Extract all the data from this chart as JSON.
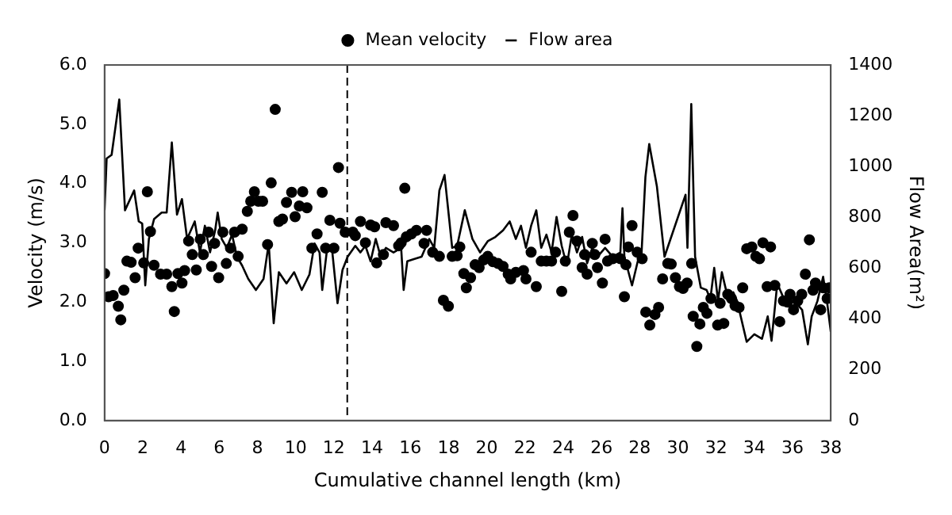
{
  "chart_data": {
    "type": "scatter",
    "xlabel": "Cumulative channel length (km)",
    "ylabel": "Velocity (m/s)",
    "y2label": "Flow Area(m²)",
    "xlim": [
      0,
      38
    ],
    "xticks": [
      0,
      2,
      4,
      6,
      8,
      10,
      12,
      14,
      16,
      18,
      20,
      22,
      24,
      26,
      28,
      30,
      32,
      34,
      36,
      38
    ],
    "ylim": [
      0,
      6
    ],
    "yticks": [
      {
        "value": 0,
        "label": "0.0"
      },
      {
        "value": 1,
        "label": "1.0"
      },
      {
        "value": 2,
        "label": "2.0"
      },
      {
        "value": 3,
        "label": "3.0"
      },
      {
        "value": 4,
        "label": "4.0"
      },
      {
        "value": 5,
        "label": "5.0"
      },
      {
        "value": 6,
        "label": "6.0"
      }
    ],
    "y2lim": [
      0,
      1400
    ],
    "y2ticks": [
      0,
      200,
      400,
      600,
      800,
      1000,
      1200,
      1400
    ],
    "grid": false,
    "legend": "top",
    "ref_lines": [
      {
        "axis": "x",
        "value": 12.7,
        "line_style": "dashed",
        "color": "#000000"
      }
    ],
    "series": [
      {
        "name": "Mean velocity",
        "type": "scatter",
        "marker": "circle",
        "color": "#000000",
        "x": [
          0,
          0.21,
          0.45,
          0.72,
          0.85,
          1.01,
          1.17,
          1.39,
          1.6,
          1.76,
          2.05,
          2.24,
          2.4,
          2.59,
          2.93,
          3.25,
          3.52,
          3.65,
          3.84,
          4.05,
          4.19,
          4.4,
          4.59,
          4.8,
          5.01,
          5.17,
          5.44,
          5.6,
          5.76,
          5.97,
          6.19,
          6.37,
          6.59,
          6.8,
          6.99,
          7.2,
          7.47,
          7.65,
          7.84,
          8.05,
          8.27,
          8.53,
          8.72,
          8.93,
          9.12,
          9.31,
          9.52,
          9.79,
          9.97,
          10.19,
          10.37,
          10.59,
          10.85,
          11.12,
          11.39,
          11.57,
          11.79,
          12.0,
          12.24,
          12.32,
          12.59,
          12.99,
          13.12,
          13.39,
          13.65,
          13.92,
          14.13,
          14.24,
          14.59,
          14.72,
          15.12,
          15.39,
          15.52,
          15.71,
          15.79,
          16.05,
          16.32,
          16.72,
          16.85,
          17.17,
          17.52,
          17.73,
          17.99,
          18.19,
          18.45,
          18.59,
          18.8,
          18.93,
          19.15,
          19.39,
          19.6,
          19.84,
          20.05,
          20.32,
          20.59,
          20.85,
          21.12,
          21.25,
          21.52,
          21.92,
          22.05,
          22.32,
          22.59,
          22.85,
          23.12,
          23.39,
          23.6,
          23.92,
          24.11,
          24.32,
          24.51,
          24.72,
          24.99,
          25.12,
          25.25,
          25.52,
          25.65,
          25.79,
          26.05,
          26.19,
          26.32,
          26.59,
          26.99,
          27.2,
          27.28,
          27.41,
          27.6,
          27.87,
          28.13,
          28.32,
          28.53,
          28.8,
          28.99,
          29.2,
          29.47,
          29.65,
          29.87,
          30.08,
          30.27,
          30.48,
          30.72,
          30.8,
          30.99,
          31.15,
          31.33,
          31.52,
          31.73,
          32.08,
          32.21,
          32.4,
          32.61,
          32.8,
          32.99,
          33.2,
          33.39,
          33.6,
          33.87,
          34.08,
          34.27,
          34.45,
          34.67,
          34.85,
          35.07,
          35.33,
          35.52,
          35.73,
          35.87,
          36.05,
          36.27,
          36.48,
          36.67,
          36.88,
          37.07,
          37.2,
          37.47,
          37.6,
          37.81,
          37.92
        ],
        "values": [
          2.48,
          2.09,
          2.11,
          1.93,
          1.7,
          2.2,
          2.69,
          2.67,
          2.41,
          2.91,
          2.66,
          3.86,
          3.19,
          2.62,
          2.47,
          2.47,
          2.26,
          1.84,
          2.48,
          2.32,
          2.53,
          3.03,
          2.8,
          2.54,
          3.06,
          2.8,
          3.18,
          2.6,
          2.99,
          2.41,
          3.18,
          2.65,
          2.91,
          3.18,
          2.77,
          3.23,
          3.53,
          3.7,
          3.86,
          3.7,
          3.7,
          2.97,
          4.01,
          5.25,
          3.36,
          3.4,
          3.68,
          3.85,
          3.44,
          3.62,
          3.86,
          3.59,
          2.91,
          3.15,
          3.85,
          2.91,
          3.38,
          2.91,
          4.27,
          3.33,
          3.18,
          3.18,
          3.12,
          3.36,
          3.0,
          3.3,
          3.27,
          2.66,
          2.8,
          3.34,
          3.29,
          2.95,
          3.0,
          3.92,
          3.1,
          3.15,
          3.21,
          2.99,
          3.21,
          2.84,
          2.77,
          2.03,
          1.93,
          2.77,
          2.78,
          2.93,
          2.48,
          2.24,
          2.41,
          2.63,
          2.58,
          2.71,
          2.77,
          2.68,
          2.65,
          2.6,
          2.47,
          2.39,
          2.5,
          2.53,
          2.39,
          2.84,
          2.26,
          2.69,
          2.69,
          2.69,
          2.84,
          2.18,
          2.69,
          3.18,
          3.46,
          3.03,
          2.58,
          2.8,
          2.47,
          2.99,
          2.8,
          2.58,
          2.32,
          3.06,
          2.69,
          2.73,
          2.73,
          2.09,
          2.63,
          2.93,
          3.29,
          2.84,
          2.73,
          1.83,
          1.61,
          1.79,
          1.91,
          2.39,
          2.65,
          2.64,
          2.41,
          2.26,
          2.23,
          2.32,
          2.65,
          1.76,
          1.25,
          1.63,
          1.91,
          1.81,
          2.06,
          1.61,
          1.98,
          1.64,
          2.13,
          2.06,
          1.94,
          1.91,
          2.24,
          2.9,
          2.93,
          2.77,
          2.73,
          3.0,
          2.26,
          2.93,
          2.28,
          1.67,
          2.02,
          2.0,
          2.13,
          1.87,
          2.02,
          2.13,
          2.47,
          3.05,
          2.2,
          2.32,
          1.87,
          2.24,
          2.06,
          2.24
        ]
      },
      {
        "name": "Flow area",
        "type": "line",
        "axis": "y2",
        "marker": "none",
        "line_style": "solid",
        "color": "#000000",
        "x": [
          0,
          0.11,
          0.37,
          0.77,
          1.07,
          1.55,
          1.79,
          1.97,
          2.13,
          2.32,
          2.59,
          2.99,
          3.25,
          3.52,
          3.79,
          4.05,
          4.32,
          4.72,
          4.99,
          5.25,
          5.52,
          5.79,
          5.92,
          6.13,
          6.4,
          6.67,
          6.93,
          7.2,
          7.52,
          7.92,
          8.32,
          8.59,
          8.85,
          9.12,
          9.52,
          9.92,
          10.32,
          10.72,
          10.99,
          11.25,
          11.39,
          11.65,
          11.92,
          12.19,
          12.45,
          12.72,
          13.12,
          13.39,
          13.65,
          13.92,
          14.19,
          14.45,
          14.72,
          15.12,
          15.52,
          15.65,
          15.84,
          16.19,
          16.59,
          16.99,
          17.25,
          17.52,
          17.79,
          18.19,
          18.45,
          18.85,
          19.25,
          19.65,
          20.05,
          20.45,
          20.85,
          21.2,
          21.52,
          21.79,
          22.05,
          22.32,
          22.59,
          22.85,
          23.12,
          23.39,
          23.65,
          23.92,
          24.19,
          24.45,
          24.72,
          24.99,
          25.25,
          25.52,
          25.79,
          26.19,
          26.59,
          26.99,
          27.1,
          27.2,
          27.6,
          27.9,
          28.1,
          28.3,
          28.5,
          28.9,
          29.3,
          30.4,
          30.5,
          30.7,
          30.9,
          31.2,
          31.5,
          31.7,
          31.9,
          32.1,
          32.3,
          32.6,
          32.9,
          33.1,
          33.6,
          34.0,
          34.4,
          34.7,
          34.9,
          35.2,
          35.6,
          35.9,
          36.3,
          36.5,
          36.8,
          37.0,
          37.3,
          37.6,
          37.8,
          38.0
        ],
        "values": [
          828,
          1032,
          1046,
          1264,
          828,
          906,
          784,
          776,
          532,
          715,
          793,
          819,
          819,
          1095,
          811,
          872,
          715,
          784,
          662,
          767,
          662,
          750,
          819,
          715,
          680,
          732,
          645,
          610,
          558,
          514,
          558,
          697,
          383,
          584,
          540,
          584,
          514,
          575,
          697,
          662,
          514,
          680,
          662,
          462,
          593,
          645,
          688,
          662,
          688,
          627,
          715,
          645,
          680,
          662,
          680,
          514,
          627,
          636,
          645,
          715,
          680,
          906,
          967,
          680,
          688,
          828,
          715,
          662,
          706,
          723,
          749,
          784,
          715,
          767,
          680,
          767,
          828,
          680,
          732,
          662,
          802,
          688,
          610,
          732,
          662,
          723,
          619,
          680,
          645,
          680,
          645,
          662,
          836,
          645,
          532,
          627,
          662,
          958,
          1089,
          923,
          645,
          889,
          680,
          1246,
          645,
          523,
          514,
          479,
          601,
          470,
          584,
          488,
          505,
          470,
          310,
          340,
          322,
          410,
          314,
          540,
          470,
          505,
          453,
          436,
          300,
          410,
          470,
          566,
          470,
          349
        ]
      }
    ]
  }
}
